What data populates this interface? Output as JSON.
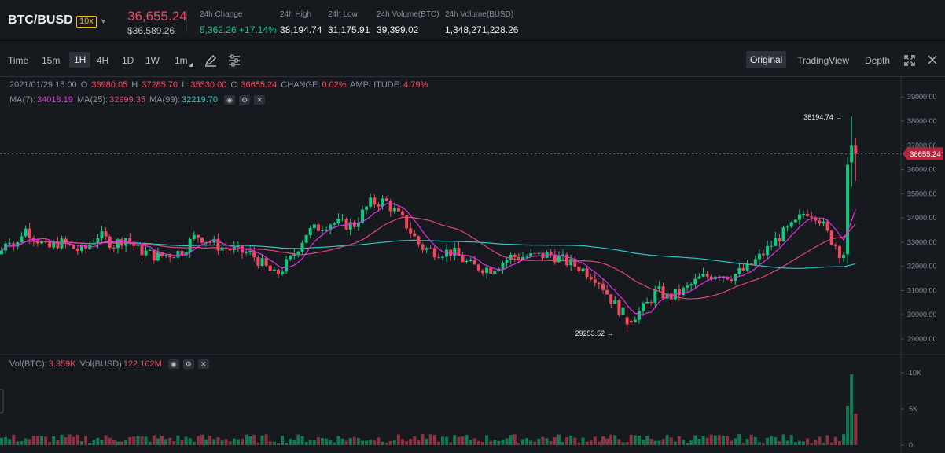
{
  "header": {
    "pair": "BTC/BUSD",
    "leverage": "10x",
    "last_price": "36,655.24",
    "last_price_usd": "$36,589.26",
    "stats": [
      {
        "label": "24h Change",
        "value": "5,362.26 +17.14%",
        "color": "green"
      },
      {
        "label": "24h High",
        "value": "38,194.74"
      },
      {
        "label": "24h Low",
        "value": "31,175.91"
      },
      {
        "label": "24h Volume(BTC)",
        "value": "39,399.02"
      },
      {
        "label": "24h Volume(BUSD)",
        "value": "1,348,271,228.26"
      }
    ]
  },
  "toolbar": {
    "intervals": [
      "Time",
      "15m",
      "1H",
      "4H",
      "1D",
      "1W",
      "1m"
    ],
    "active_interval": "1H",
    "views": [
      "Original",
      "TradingView",
      "Depth"
    ],
    "active_view": "Original"
  },
  "ohlc": {
    "date": "2021/01/29 15:00",
    "o_label": "O:",
    "o": "36980.05",
    "h_label": "H:",
    "h": "37285.70",
    "l_label": "L:",
    "l": "35530.00",
    "c_label": "C:",
    "c": "36655.24",
    "change_label": "CHANGE:",
    "change": "0.02%",
    "amplitude_label": "AMPLITUDE:",
    "amplitude": "4.79%"
  },
  "ma": {
    "ma7_label": "MA(7):",
    "ma7": "34018.19",
    "ma25_label": "MA(25):",
    "ma25": "32999.35",
    "ma99_label": "MA(99):",
    "ma99": "32219.70"
  },
  "volume": {
    "btc_label": "Vol(BTC):",
    "btc": "3.359K",
    "busd_label": "Vol(BUSD)",
    "busd": "122.162M"
  },
  "chart_data": {
    "type": "candlestick",
    "price_axis_ticks": [
      39000,
      38000,
      37000,
      36000,
      35000,
      34000,
      33000,
      32000,
      31000,
      30000,
      29000
    ],
    "price_axis_labels": [
      "39000.00",
      "38000.00",
      "37000.00",
      "36000.00",
      "35000.00",
      "34000.00",
      "33000.00",
      "32000.00",
      "31000.00",
      "30000.00",
      "29000.00"
    ],
    "volume_axis_labels": [
      "10K",
      "5K",
      "0"
    ],
    "high_marker": "38194.74",
    "low_marker": "29253.52",
    "current_price_label": "36655.24",
    "colors": {
      "up": "#0ecb81",
      "down": "#f6465d",
      "ma7": "#e12fe3",
      "ma25": "#e0467c",
      "ma99": "#2ec4c4"
    }
  }
}
